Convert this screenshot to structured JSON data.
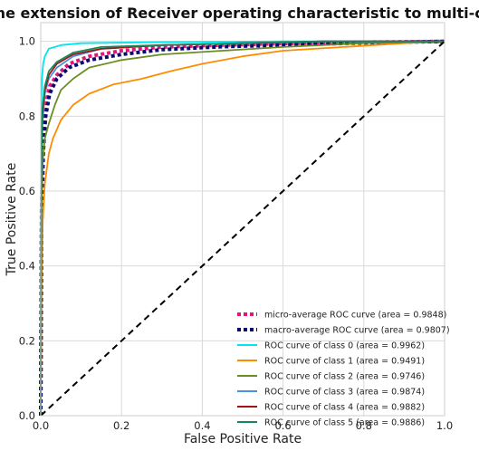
{
  "chart_data": {
    "type": "line",
    "title": "Some extension of Receiver operating characteristic to multi-class",
    "xlabel": "False Positive Rate",
    "ylabel": "True Positive Rate",
    "xlim": [
      0.0,
      1.0
    ],
    "ylim": [
      0.0,
      1.05
    ],
    "xticks": [
      "0.0",
      "0.2",
      "0.4",
      "0.6",
      "0.8",
      "1.0"
    ],
    "yticks": [
      "0.0",
      "0.2",
      "0.4",
      "0.6",
      "0.8",
      "1.0"
    ],
    "grid": true,
    "legend_position": "lower-right",
    "series": [
      {
        "name": "micro-average ROC curve (area = 0.9848)",
        "color": "#e3177b",
        "style": "dotted",
        "width": 4,
        "x": [
          0.0,
          0.002,
          0.006,
          0.012,
          0.022,
          0.04,
          0.07,
          0.12,
          0.2,
          0.3,
          0.45,
          0.6,
          0.8,
          1.0
        ],
        "y": [
          0.0,
          0.55,
          0.74,
          0.83,
          0.88,
          0.91,
          0.94,
          0.96,
          0.975,
          0.985,
          0.99,
          0.994,
          0.998,
          1.0
        ]
      },
      {
        "name": "macro-average ROC curve (area = 0.9807)",
        "color": "#0b0b6e",
        "style": "dotted",
        "width": 4,
        "x": [
          0.0,
          0.002,
          0.006,
          0.012,
          0.022,
          0.04,
          0.07,
          0.12,
          0.2,
          0.3,
          0.45,
          0.6,
          0.8,
          1.0
        ],
        "y": [
          0.0,
          0.5,
          0.7,
          0.8,
          0.86,
          0.9,
          0.93,
          0.95,
          0.965,
          0.978,
          0.986,
          0.99,
          0.996,
          1.0
        ]
      },
      {
        "name": "ROC curve of class 0 (area = 0.9962)",
        "color": "#00e5ee",
        "style": "solid",
        "width": 1.8,
        "x": [
          0.0,
          0.001,
          0.003,
          0.006,
          0.01,
          0.02,
          0.05,
          0.1,
          0.3,
          0.6,
          1.0
        ],
        "y": [
          0.0,
          0.8,
          0.9,
          0.94,
          0.96,
          0.98,
          0.99,
          0.995,
          0.998,
          1.0,
          1.0
        ]
      },
      {
        "name": "ROC curve of class 1 (area = 0.9491)",
        "color": "#ff8c00",
        "style": "solid",
        "width": 1.8,
        "x": [
          0.0,
          0.002,
          0.005,
          0.01,
          0.02,
          0.03,
          0.05,
          0.08,
          0.12,
          0.18,
          0.25,
          0.32,
          0.4,
          0.5,
          0.6,
          0.75,
          0.9,
          1.0
        ],
        "y": [
          0.0,
          0.35,
          0.52,
          0.62,
          0.7,
          0.74,
          0.79,
          0.83,
          0.86,
          0.885,
          0.9,
          0.92,
          0.94,
          0.96,
          0.975,
          0.985,
          0.995,
          1.0
        ]
      },
      {
        "name": "ROC curve of class 2 (area = 0.9746)",
        "color": "#6b8e23",
        "style": "solid",
        "width": 1.8,
        "x": [
          0.0,
          0.002,
          0.005,
          0.01,
          0.02,
          0.035,
          0.05,
          0.08,
          0.12,
          0.2,
          0.3,
          0.45,
          0.6,
          0.8,
          1.0
        ],
        "y": [
          0.0,
          0.55,
          0.68,
          0.74,
          0.78,
          0.83,
          0.87,
          0.9,
          0.93,
          0.95,
          0.965,
          0.975,
          0.985,
          0.995,
          1.0
        ]
      },
      {
        "name": "ROC curve of class 3 (area = 0.9874)",
        "color": "#4a90e2",
        "style": "solid",
        "width": 1.8,
        "x": [
          0.0,
          0.001,
          0.004,
          0.01,
          0.02,
          0.04,
          0.08,
          0.15,
          0.3,
          0.5,
          0.7,
          1.0
        ],
        "y": [
          0.0,
          0.6,
          0.78,
          0.86,
          0.9,
          0.93,
          0.96,
          0.98,
          0.99,
          0.995,
          1.0,
          1.0
        ]
      },
      {
        "name": "ROC curve of class 4 (area = 0.9882)",
        "color": "#a01414",
        "style": "solid",
        "width": 1.8,
        "x": [
          0.0,
          0.001,
          0.004,
          0.01,
          0.02,
          0.04,
          0.08,
          0.15,
          0.3,
          0.5,
          0.7,
          1.0
        ],
        "y": [
          0.0,
          0.62,
          0.8,
          0.87,
          0.91,
          0.94,
          0.965,
          0.98,
          0.99,
          0.995,
          1.0,
          1.0
        ]
      },
      {
        "name": "ROC curve of class 5 (area = 0.9886)",
        "color": "#128a5a",
        "style": "solid",
        "width": 1.8,
        "x": [
          0.0,
          0.001,
          0.004,
          0.01,
          0.02,
          0.04,
          0.08,
          0.15,
          0.3,
          0.5,
          0.7,
          1.0
        ],
        "y": [
          0.0,
          0.64,
          0.82,
          0.88,
          0.92,
          0.945,
          0.97,
          0.985,
          0.99,
          0.995,
          1.0,
          1.0
        ]
      }
    ],
    "reference_line": {
      "x": [
        0.0,
        1.0
      ],
      "y": [
        0.0,
        1.0
      ],
      "color": "#000000",
      "style": "dashed"
    }
  }
}
